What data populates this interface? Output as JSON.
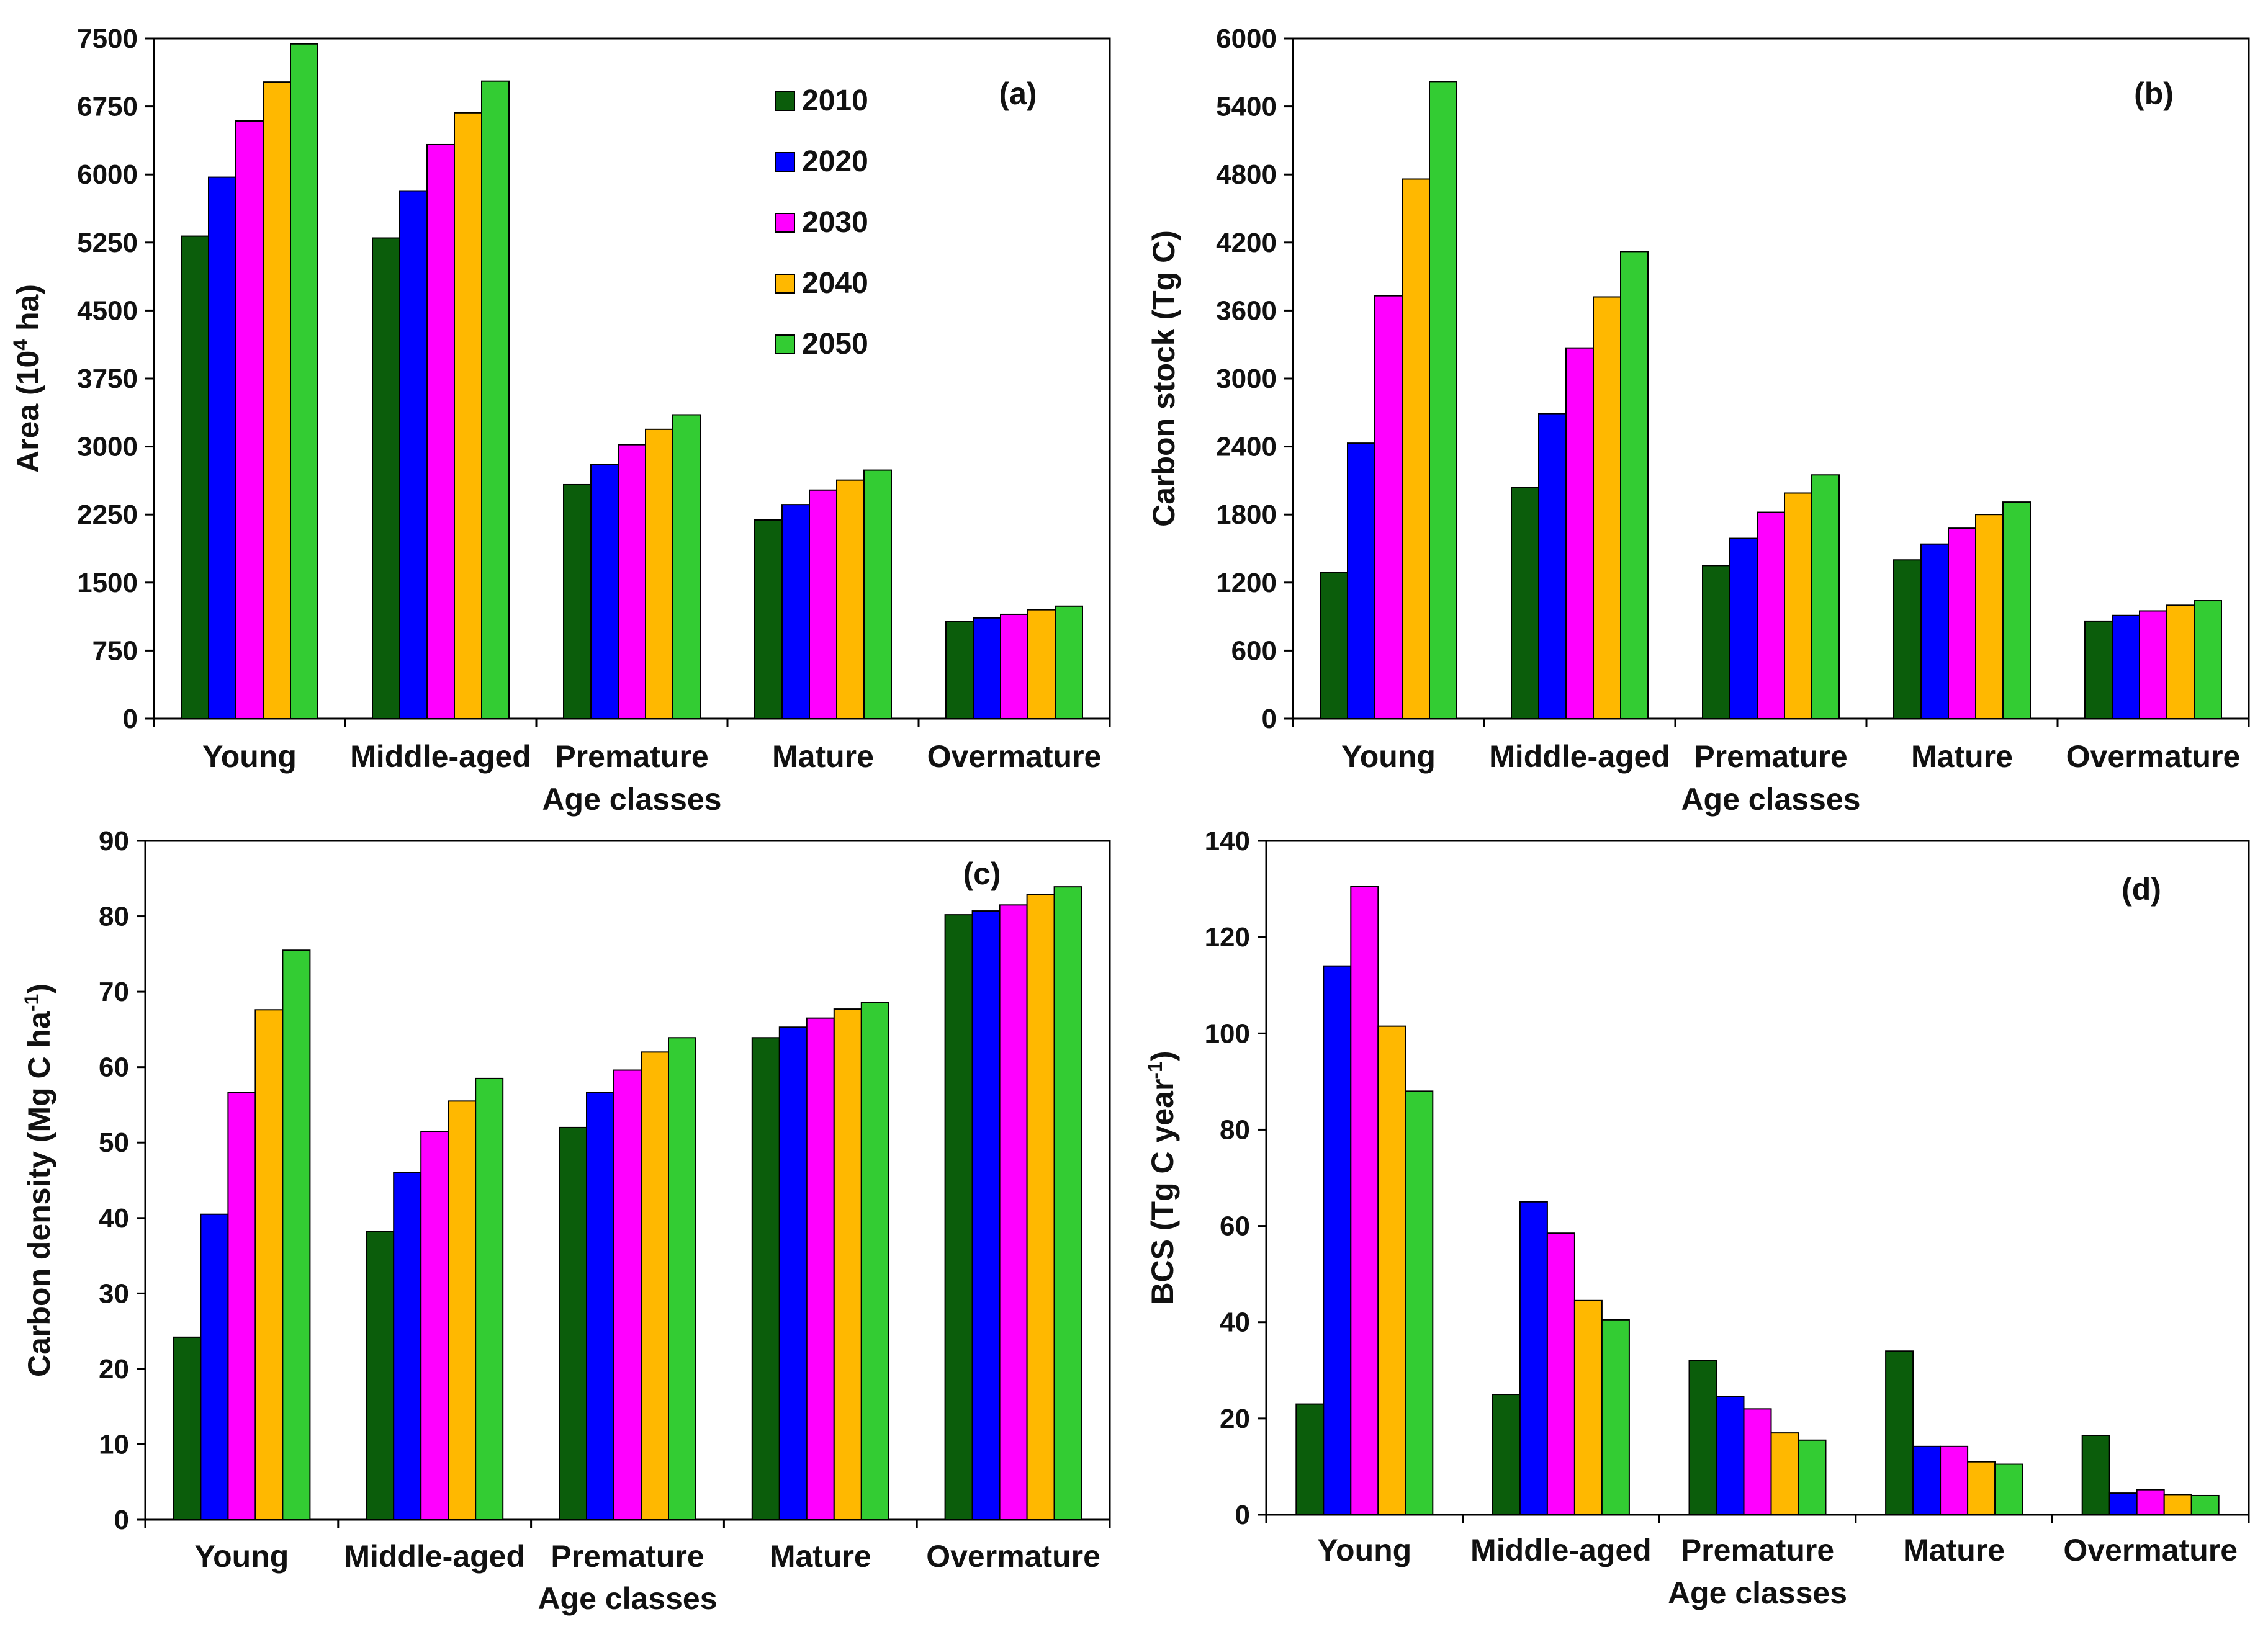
{
  "colors": {
    "2010": "#0b5d0b",
    "2020": "#0000ff",
    "2030": "#ff00ff",
    "2040": "#ffb800",
    "2050": "#33cc33"
  },
  "legend": [
    "2010",
    "2020",
    "2030",
    "2040",
    "2050"
  ],
  "chart_data": [
    {
      "id": "a",
      "type": "bar",
      "panel_label": "(a)",
      "ylabel_main": "Area (10",
      "ylabel_sup": "4",
      "ylabel_tail": " ha)",
      "xlabel": "Age classes",
      "ylim": [
        0,
        7500
      ],
      "yticks": [
        0,
        750,
        1500,
        2250,
        3000,
        3750,
        4500,
        5250,
        6000,
        6750,
        7500
      ],
      "categories": [
        "Young",
        "Middle-aged",
        "Premature",
        "Mature",
        "Overmature"
      ],
      "show_legend": true,
      "show_xlabel": true,
      "series": [
        {
          "name": "2010",
          "values": [
            5320,
            5300,
            2580,
            2190,
            1070
          ]
        },
        {
          "name": "2020",
          "values": [
            5970,
            5820,
            2800,
            2360,
            1110
          ]
        },
        {
          "name": "2030",
          "values": [
            6590,
            6330,
            3020,
            2520,
            1150
          ]
        },
        {
          "name": "2040",
          "values": [
            7020,
            6680,
            3190,
            2630,
            1200
          ]
        },
        {
          "name": "2050",
          "values": [
            7440,
            7030,
            3350,
            2740,
            1240
          ]
        }
      ]
    },
    {
      "id": "b",
      "type": "bar",
      "panel_label": "(b)",
      "ylabel_main": "Carbon stock (Tg C)",
      "xlabel": "Age classes",
      "ylim": [
        0,
        6000
      ],
      "yticks": [
        0,
        600,
        1200,
        1800,
        2400,
        3000,
        3600,
        4200,
        4800,
        5400,
        6000
      ],
      "categories": [
        "Young",
        "Middle-aged",
        "Premature",
        "Mature",
        "Overmature"
      ],
      "show_legend": false,
      "show_xlabel": true,
      "series": [
        {
          "name": "2010",
          "values": [
            1290,
            2040,
            1350,
            1400,
            860
          ]
        },
        {
          "name": "2020",
          "values": [
            2430,
            2690,
            1590,
            1540,
            910
          ]
        },
        {
          "name": "2030",
          "values": [
            3730,
            3270,
            1820,
            1680,
            950
          ]
        },
        {
          "name": "2040",
          "values": [
            4760,
            3720,
            1990,
            1800,
            1000
          ]
        },
        {
          "name": "2050",
          "values": [
            5620,
            4120,
            2150,
            1910,
            1040
          ]
        }
      ]
    },
    {
      "id": "c",
      "type": "bar",
      "panel_label": "(c)",
      "ylabel_main": "Carbon density (Mg C ha",
      "ylabel_sup": "-1",
      "ylabel_tail": ")",
      "xlabel": "Age classes",
      "ylim": [
        0,
        90
      ],
      "yticks": [
        0,
        10,
        20,
        30,
        40,
        50,
        60,
        70,
        80,
        90
      ],
      "categories": [
        "Young",
        "Middle-aged",
        "Premature",
        "Mature",
        "Overmature"
      ],
      "show_legend": false,
      "show_xlabel": true,
      "series": [
        {
          "name": "2010",
          "values": [
            24.2,
            38.2,
            52.0,
            63.9,
            80.2
          ]
        },
        {
          "name": "2020",
          "values": [
            40.5,
            46.0,
            56.6,
            65.3,
            80.7
          ]
        },
        {
          "name": "2030",
          "values": [
            56.6,
            51.5,
            59.6,
            66.5,
            81.5
          ]
        },
        {
          "name": "2040",
          "values": [
            67.6,
            55.5,
            62.0,
            67.7,
            82.9
          ]
        },
        {
          "name": "2050",
          "values": [
            75.5,
            58.5,
            63.9,
            68.6,
            83.9
          ]
        }
      ]
    },
    {
      "id": "d",
      "type": "bar",
      "panel_label": "(d)",
      "ylabel_main": "BCS (Tg C year",
      "ylabel_sup": "-1",
      "ylabel_tail": ")",
      "xlabel": "Age classes",
      "ylim": [
        0,
        140
      ],
      "yticks": [
        0,
        20,
        40,
        60,
        80,
        100,
        120,
        140
      ],
      "categories": [
        "Young",
        "Middle-aged",
        "Premature",
        "Mature",
        "Overmature"
      ],
      "show_legend": false,
      "show_xlabel": true,
      "series": [
        {
          "name": "2010",
          "values": [
            23,
            25,
            32,
            34,
            16.5
          ]
        },
        {
          "name": "2020",
          "values": [
            114,
            65,
            24.5,
            14.2,
            4.5
          ]
        },
        {
          "name": "2030",
          "values": [
            130.5,
            58.5,
            22,
            14.2,
            5.2
          ]
        },
        {
          "name": "2040",
          "values": [
            101.5,
            44.5,
            17,
            11,
            4.2
          ]
        },
        {
          "name": "2050",
          "values": [
            88,
            40.5,
            15.5,
            10.5,
            4
          ]
        }
      ]
    }
  ]
}
